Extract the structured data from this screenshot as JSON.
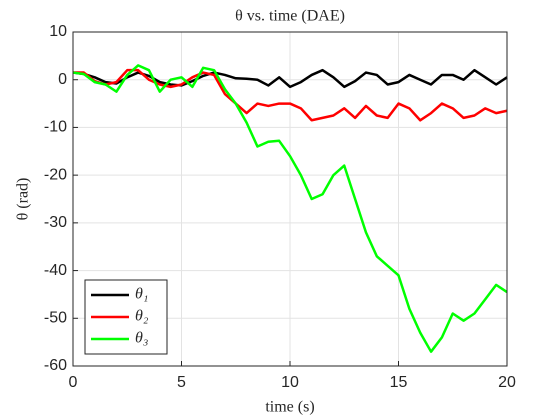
{
  "chart_data": {
    "type": "line",
    "title": "θ vs. time (DAE)",
    "x_label": "time (s)",
    "y_label": "θ (rad)",
    "x": [
      0,
      0.5,
      1,
      1.5,
      2,
      2.5,
      3,
      3.5,
      4,
      4.5,
      5,
      5.5,
      6,
      6.5,
      7,
      7.5,
      8,
      8.5,
      9,
      9.5,
      10,
      10.5,
      11,
      11.5,
      12,
      12.5,
      13,
      13.5,
      14,
      14.5,
      15,
      15.5,
      16,
      16.5,
      17,
      17.5,
      18,
      18.5,
      19,
      19.5,
      20
    ],
    "series": [
      {
        "name": "θ₁",
        "color": "#000000",
        "values": [
          1.5,
          1.2,
          0.5,
          -0.5,
          -0.8,
          0.5,
          1.5,
          0.8,
          -0.5,
          -1,
          -1.2,
          -0.3,
          0.8,
          1.5,
          1,
          0.3,
          0.2,
          0,
          -1.2,
          0.5,
          -1.5,
          -0.5,
          1,
          2,
          0.5,
          -1.5,
          -0.3,
          1.5,
          1,
          -1,
          -0.5,
          1,
          0,
          -1,
          1,
          1,
          0,
          2,
          0.5,
          -1,
          0.5
        ]
      },
      {
        "name": "θ₂",
        "color": "#ff0000",
        "values": [
          1.5,
          1.5,
          -0.3,
          -1,
          -0.5,
          2,
          2,
          0,
          -1,
          -1.5,
          -1,
          0.5,
          1.5,
          1,
          -3,
          -5,
          -7,
          -5,
          -5.5,
          -5,
          -5,
          -6,
          -8.5,
          -8,
          -7.5,
          -6,
          -8,
          -5.5,
          -7.5,
          -8,
          -5,
          -6,
          -8.5,
          -7,
          -5,
          -6,
          -8,
          -7.5,
          -6,
          -7,
          -6.5
        ]
      },
      {
        "name": "θ₃",
        "color": "#00ff00",
        "values": [
          1.5,
          1.2,
          -0.5,
          -1,
          -2.5,
          1,
          3,
          2,
          -2.5,
          0,
          0.5,
          -1.5,
          2.5,
          2,
          -2,
          -5,
          -9,
          -14,
          -13,
          -12.8,
          -16,
          -20,
          -25,
          -24,
          -20,
          -18,
          -25,
          -32,
          -37,
          -39,
          -41,
          -48,
          -53,
          -57,
          -54,
          -49,
          -50.5,
          -49,
          -46,
          -43,
          -44.5
        ]
      }
    ],
    "xlim": [
      0,
      20
    ],
    "xticks": [
      0,
      5,
      10,
      15,
      20
    ],
    "ylim": [
      -60,
      10
    ],
    "yticks": [
      -60,
      -50,
      -40,
      -30,
      -20,
      -10,
      0,
      10
    ],
    "grid": true,
    "legend": "lower left"
  }
}
